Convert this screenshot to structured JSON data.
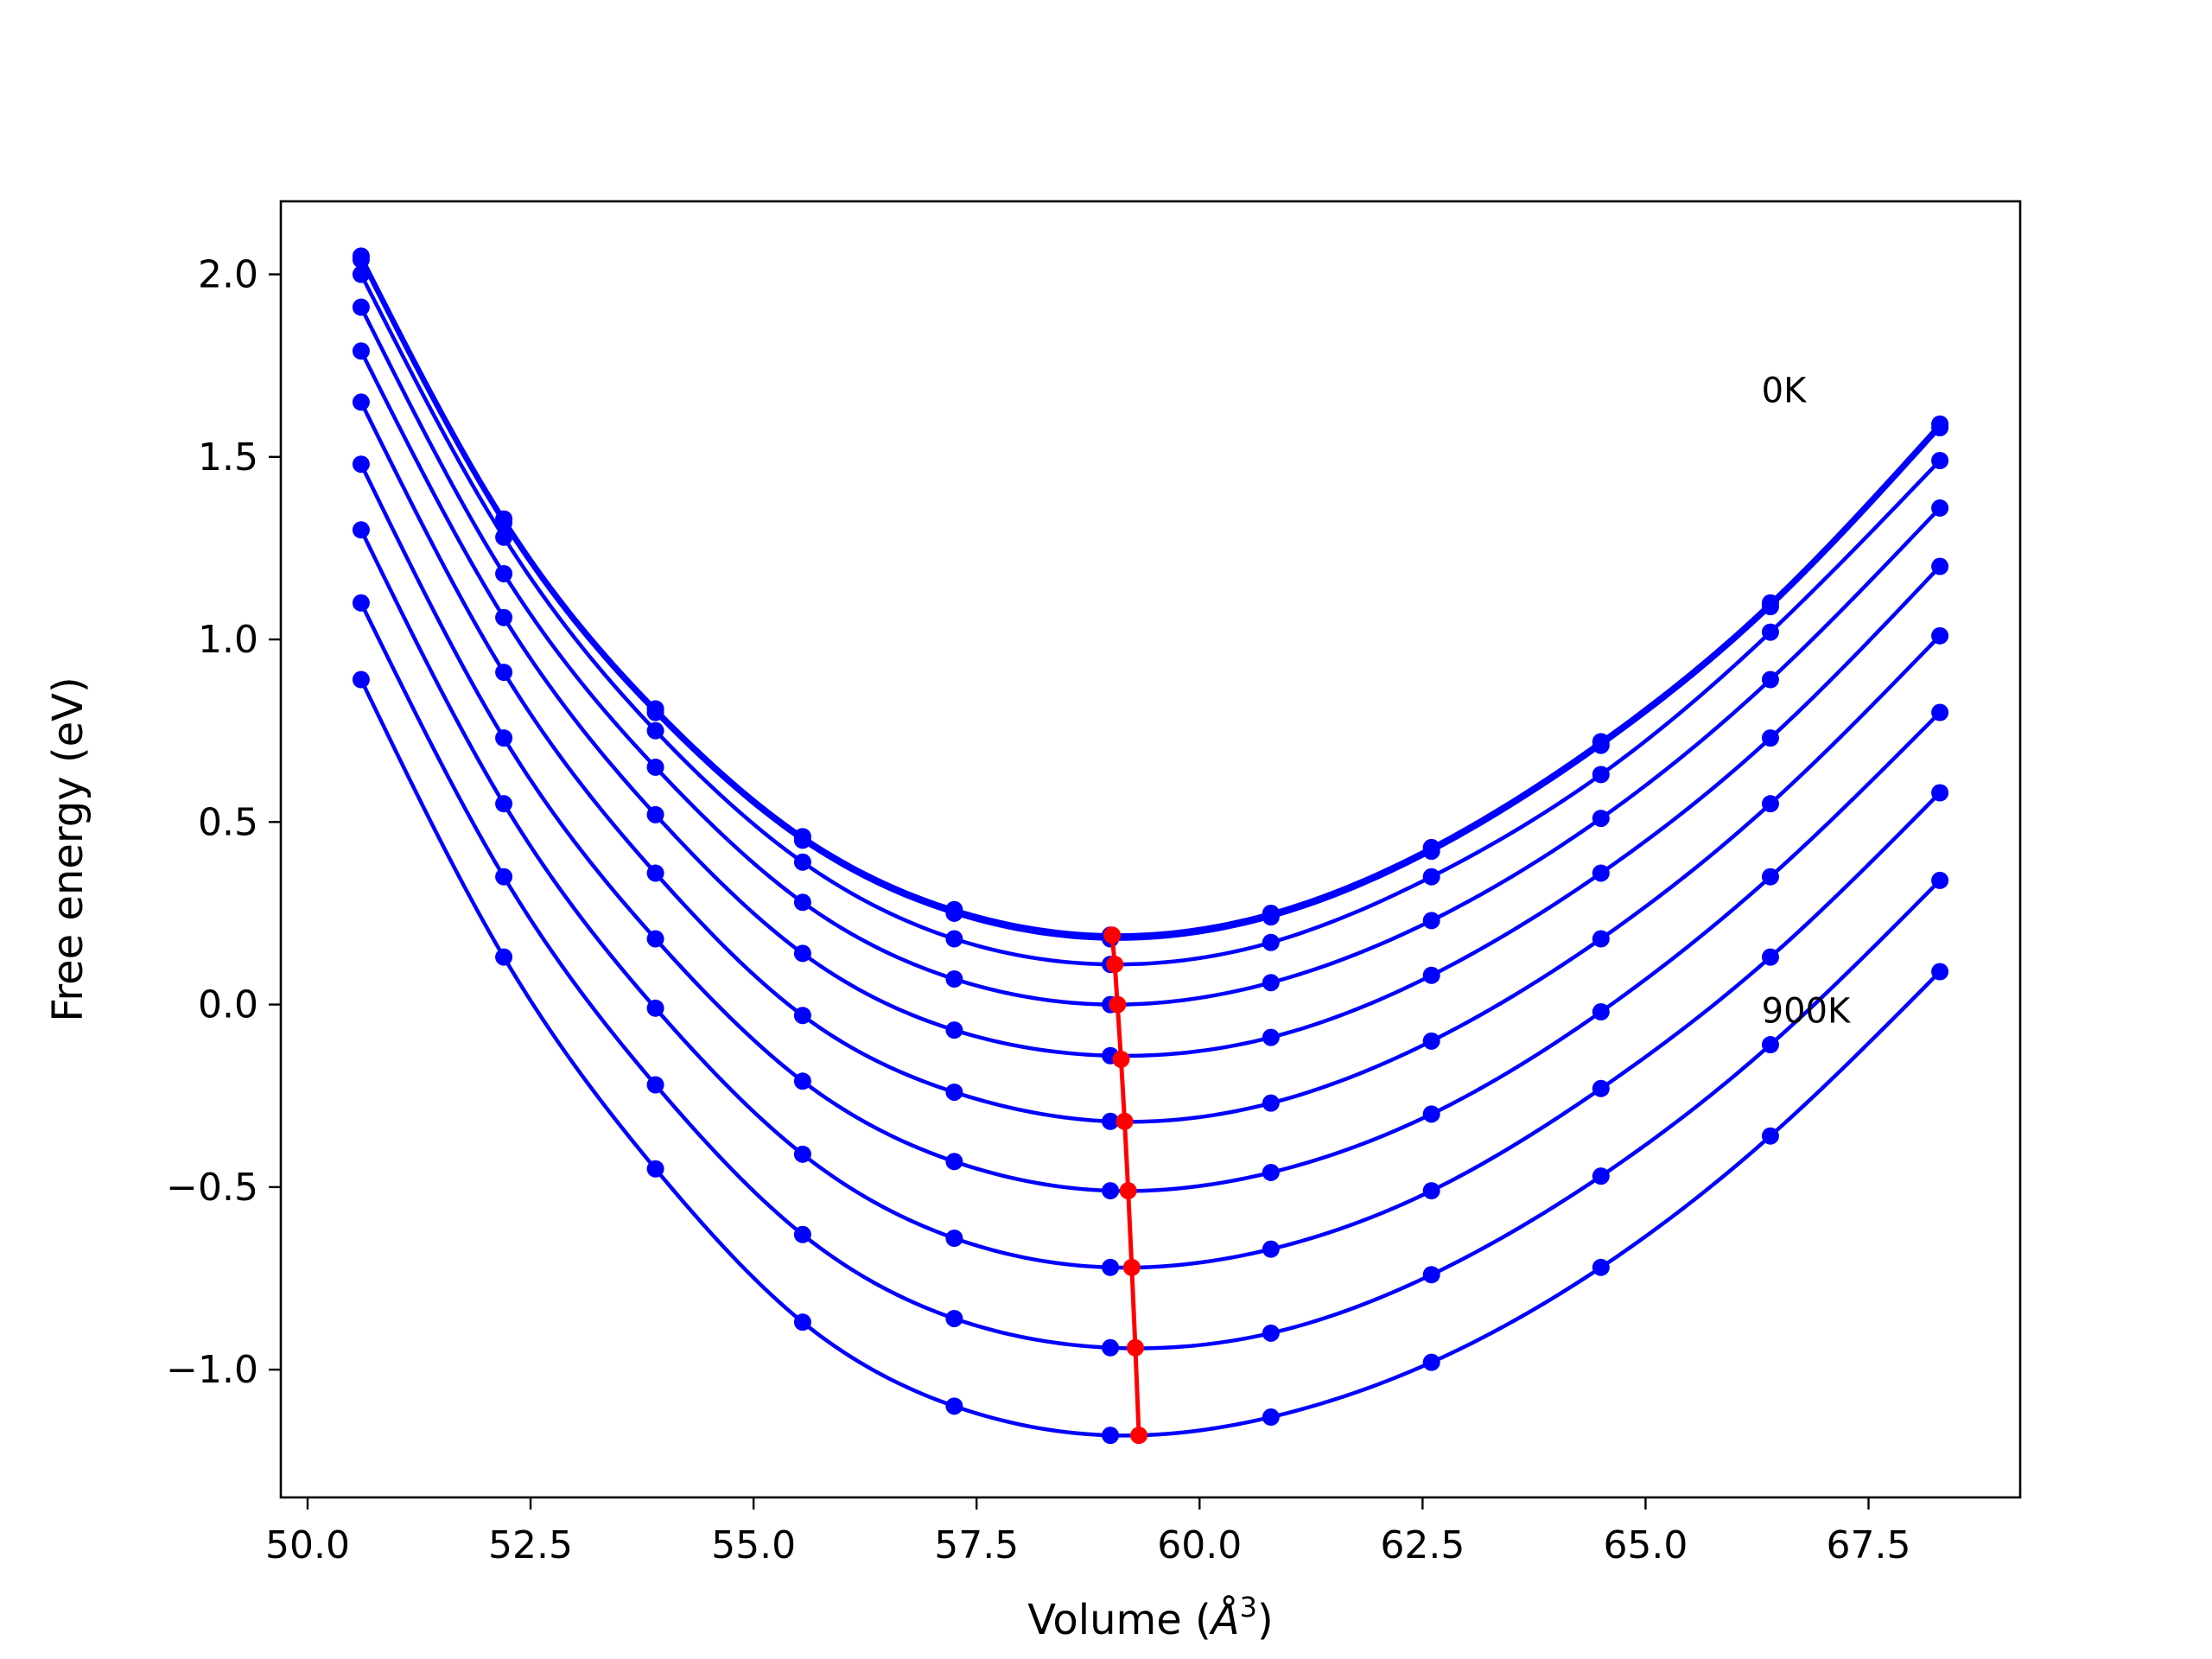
{
  "chart_data": {
    "type": "line",
    "title": "",
    "xlabel": "Volume (Å³)",
    "xlabel_base": "Volume (",
    "xlabel_symbol": "Å",
    "xlabel_sup": "3",
    "xlabel_close": ")",
    "ylabel": "Free energy (eV)",
    "xlim": [
      49.7,
      69.2
    ],
    "ylim": [
      -1.35,
      2.2
    ],
    "xticks": [
      50.0,
      52.5,
      55.0,
      57.5,
      60.0,
      62.5,
      65.0,
      67.5
    ],
    "xtick_labels": [
      "50.0",
      "52.5",
      "55.0",
      "57.5",
      "60.0",
      "62.5",
      "65.0",
      "67.5"
    ],
    "yticks": [
      -1.0,
      -0.5,
      0.0,
      0.5,
      1.0,
      1.5,
      2.0
    ],
    "ytick_labels": [
      "−1.0",
      "−0.5",
      "0.0",
      "0.5",
      "1.0",
      "1.5",
      "2.0"
    ],
    "grid": false,
    "legend": "none",
    "colors": {
      "curves": "#0000ff",
      "minimum": "#ff0000",
      "frame": "#000000"
    },
    "annotations": [
      {
        "text": "0K",
        "x": 66.3,
        "y": 1.65
      },
      {
        "text": "900K",
        "x": 66.3,
        "y": -0.05
      }
    ],
    "x": [
      50.6,
      52.2,
      53.9,
      55.55,
      57.25,
      59.0,
      60.8,
      62.6,
      64.5,
      66.4,
      68.3
    ],
    "series": [
      {
        "values": [
          2.05,
          1.33,
          0.81,
          0.46,
          0.26,
          0.19,
          0.25,
          0.43,
          0.72,
          1.1,
          1.59
        ]
      },
      {
        "values": [
          2.04,
          1.32,
          0.8,
          0.45,
          0.25,
          0.18,
          0.24,
          0.42,
          0.71,
          1.09,
          1.58
        ]
      },
      {
        "values": [
          2.0,
          1.28,
          0.75,
          0.39,
          0.18,
          0.11,
          0.17,
          0.35,
          0.63,
          1.02,
          1.49
        ]
      },
      {
        "values": [
          1.91,
          1.18,
          0.65,
          0.28,
          0.07,
          0.0,
          0.06,
          0.23,
          0.51,
          0.89,
          1.36
        ]
      },
      {
        "values": [
          1.79,
          1.06,
          0.52,
          0.14,
          -0.07,
          -0.14,
          -0.09,
          0.08,
          0.36,
          0.73,
          1.2
        ]
      },
      {
        "values": [
          1.65,
          0.91,
          0.36,
          -0.03,
          -0.24,
          -0.32,
          -0.27,
          -0.1,
          0.18,
          0.55,
          1.01
        ]
      },
      {
        "values": [
          1.48,
          0.73,
          0.18,
          -0.21,
          -0.43,
          -0.51,
          -0.46,
          -0.3,
          -0.02,
          0.35,
          0.8
        ]
      },
      {
        "values": [
          1.3,
          0.55,
          -0.01,
          -0.41,
          -0.64,
          -0.72,
          -0.67,
          -0.51,
          -0.23,
          0.13,
          0.58
        ]
      },
      {
        "values": [
          1.1,
          0.35,
          -0.22,
          -0.63,
          -0.86,
          -0.94,
          -0.9,
          -0.74,
          -0.47,
          -0.11,
          0.34
        ]
      },
      {
        "values": [
          0.89,
          0.13,
          -0.45,
          -0.87,
          -1.1,
          -1.18,
          -1.13,
          -0.98,
          -0.72,
          -0.36,
          0.09
        ]
      }
    ],
    "minimum_curve": {
      "x": [
        59.02,
        59.05,
        59.08,
        59.12,
        59.16,
        59.2,
        59.24,
        59.28,
        59.32
      ],
      "y": [
        0.19,
        0.11,
        0.0,
        -0.15,
        -0.32,
        -0.51,
        -0.72,
        -0.94,
        -1.18
      ]
    }
  }
}
